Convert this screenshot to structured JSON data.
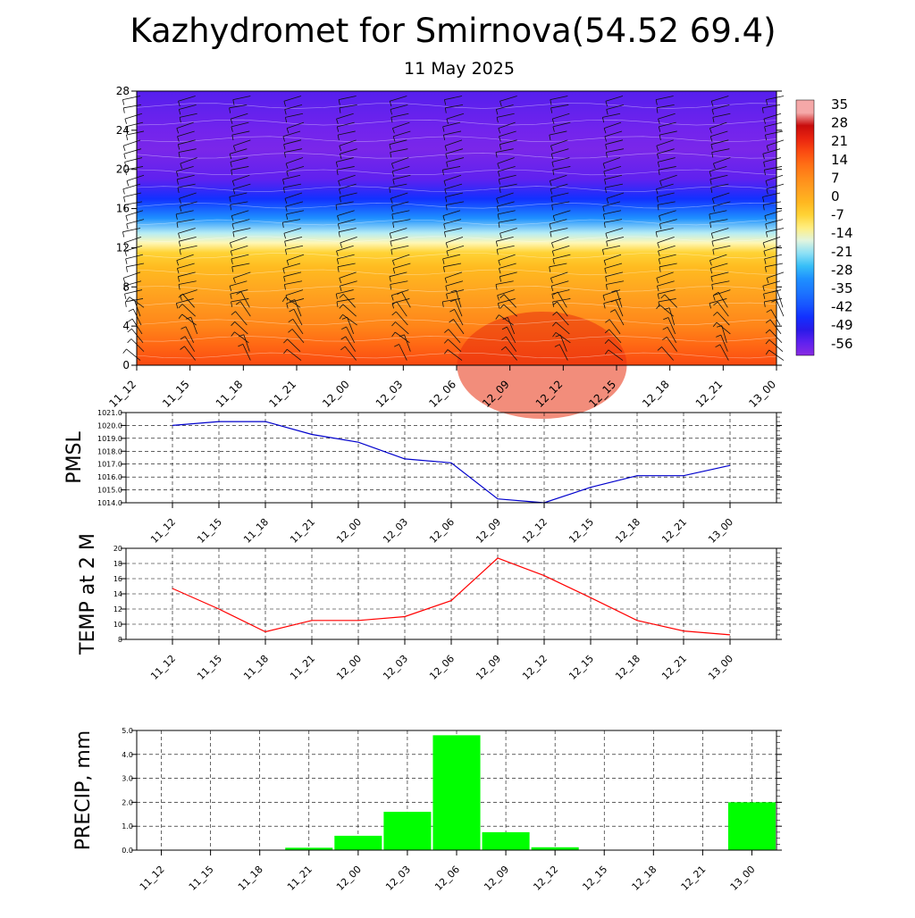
{
  "header": {
    "title": "Kazhydromet for Smirnova(54.52 69.4)",
    "subtitle": "11 May 2025"
  },
  "time_labels": [
    "11_12",
    "11_15",
    "11_18",
    "11_21",
    "12_00",
    "12_03",
    "12_06",
    "12_09",
    "12_12",
    "12_15",
    "12_18",
    "12_21",
    "13_00"
  ],
  "chart_data": [
    {
      "type": "heatmap",
      "title": "",
      "ylim": [
        0,
        28
      ],
      "y_ticks": [
        "0",
        "4",
        "8",
        "12",
        "16",
        "20",
        "24",
        "28"
      ],
      "x": [
        "11_12",
        "11_15",
        "11_18",
        "11_21",
        "12_00",
        "12_03",
        "12_06",
        "12_09",
        "12_12",
        "12_15",
        "12_18",
        "12_21",
        "13_00"
      ],
      "temperature_profile": [
        {
          "height": 0,
          "temp": 20
        },
        {
          "height": 2,
          "temp": 16
        },
        {
          "height": 4,
          "temp": 11
        },
        {
          "height": 6,
          "temp": 7
        },
        {
          "height": 8,
          "temp": 3
        },
        {
          "height": 10,
          "temp": -1
        },
        {
          "height": 11.5,
          "temp": -5
        },
        {
          "height": 12.5,
          "temp": -12
        },
        {
          "height": 13.5,
          "temp": -18
        },
        {
          "height": 15,
          "temp": -30
        },
        {
          "height": 17,
          "temp": -45
        },
        {
          "height": 19,
          "temp": -55
        },
        {
          "height": 22,
          "temp": -58
        },
        {
          "height": 24,
          "temp": -57
        },
        {
          "height": 28,
          "temp": -54
        }
      ],
      "colorbar": {
        "labels": [
          "35",
          "28",
          "21",
          "14",
          "7",
          "0",
          "-7",
          "-14",
          "-21",
          "-28",
          "-35",
          "-42",
          "-49",
          "-56"
        ]
      },
      "grid": false,
      "wind_barbs": true
    },
    {
      "type": "line",
      "ylabel": "PMSL",
      "ylim": [
        1014,
        1021
      ],
      "y_ticks": [
        "1014.0",
        "1015.0",
        "1016.0",
        "1017.0",
        "1018.0",
        "1019.0",
        "1020.0",
        "1021.0"
      ],
      "x": [
        "11_12",
        "11_15",
        "11_18",
        "11_21",
        "12_00",
        "12_03",
        "12_06",
        "12_09",
        "12_12",
        "12_15",
        "12_18",
        "12_21",
        "13_00"
      ],
      "series": [
        {
          "values": [
            1020.0,
            1020.3,
            1020.3,
            1019.3,
            1018.7,
            1017.4,
            1017.1,
            1014.3,
            1014.0,
            1015.2,
            1016.1,
            1016.1,
            1016.9
          ]
        }
      ],
      "color": "#0000cc",
      "grid": true
    },
    {
      "type": "line",
      "ylabel": "TEMP at 2 M",
      "ylim": [
        8,
        20
      ],
      "y_ticks": [
        "8",
        "10",
        "12",
        "14",
        "16",
        "18",
        "20"
      ],
      "x": [
        "11_12",
        "11_15",
        "11_18",
        "11_21",
        "12_00",
        "12_03",
        "12_06",
        "12_09",
        "12_12",
        "12_15",
        "12_18",
        "12_21",
        "13_00"
      ],
      "series": [
        {
          "values": [
            14.7,
            12.0,
            9.0,
            10.5,
            10.5,
            11.0,
            13.1,
            18.7,
            16.4,
            13.5,
            10.5,
            9.1,
            8.6
          ]
        }
      ],
      "color": "#ff0000",
      "grid": true
    },
    {
      "type": "bar",
      "ylabel": "PRECIP, mm",
      "ylim": [
        0,
        5
      ],
      "y_ticks": [
        "0.0",
        "1.0",
        "2.0",
        "3.0",
        "4.0",
        "5.0"
      ],
      "categories": [
        "11_12",
        "11_15",
        "11_18",
        "11_21",
        "12_00",
        "12_03",
        "12_06",
        "12_09",
        "12_12",
        "12_15",
        "12_18",
        "12_21",
        "13_00"
      ],
      "values": [
        0,
        0,
        0,
        0.1,
        0.6,
        1.6,
        4.8,
        0.75,
        0.12,
        0,
        0,
        0,
        2.0
      ],
      "color": "#00ff00",
      "grid": true
    }
  ]
}
